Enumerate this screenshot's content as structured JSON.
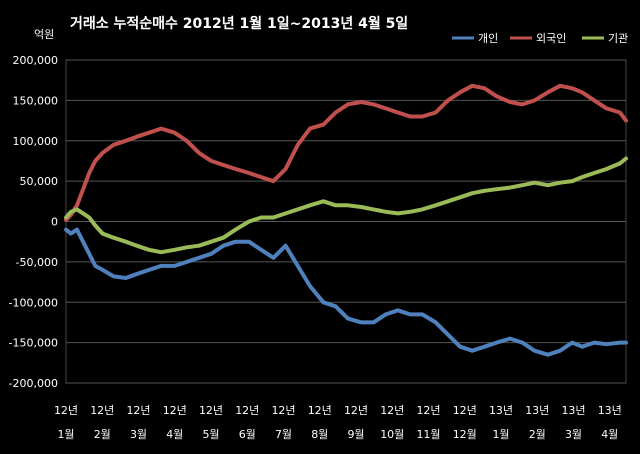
{
  "chart_data": {
    "type": "line",
    "title": "거래소  누적순매수 2012년 1월 1일~2013년 4월 5일",
    "unit_label": "억원",
    "xlabel": "",
    "ylabel": "",
    "ylim": [
      -200000,
      200000
    ],
    "yticks": [
      200000,
      150000,
      100000,
      50000,
      0,
      -50000,
      -100000,
      -150000,
      -200000
    ],
    "ytick_labels": [
      "200,000",
      "150,000",
      "100,000",
      "50,000",
      "0",
      "-50,000",
      "-100,000",
      "-150,000",
      "-200,000"
    ],
    "grid": true,
    "legend_position": "top-right",
    "x_dates": [
      "2012-01-02",
      "2012-01-06",
      "2012-01-11",
      "2012-01-16",
      "2012-01-21",
      "2012-01-26",
      "2012-02-01",
      "2012-02-10",
      "2012-02-20",
      "2012-02-29",
      "2012-03-10",
      "2012-03-20",
      "2012-03-31",
      "2012-04-10",
      "2012-04-20",
      "2012-04-30",
      "2012-05-10",
      "2012-05-20",
      "2012-05-31",
      "2012-06-10",
      "2012-06-20",
      "2012-06-30",
      "2012-07-10",
      "2012-07-20",
      "2012-07-31",
      "2012-08-10",
      "2012-08-20",
      "2012-08-31",
      "2012-09-10",
      "2012-09-20",
      "2012-09-30",
      "2012-10-10",
      "2012-10-20",
      "2012-10-31",
      "2012-11-10",
      "2012-11-20",
      "2012-11-30",
      "2012-12-10",
      "2012-12-20",
      "2012-12-31",
      "2013-01-10",
      "2013-01-20",
      "2013-01-31",
      "2013-02-10",
      "2013-02-20",
      "2013-02-28",
      "2013-03-10",
      "2013-03-20",
      "2013-03-31",
      "2013-04-05"
    ],
    "series": [
      {
        "name": "개인",
        "color": "#4f81bd",
        "values": [
          -10000,
          -15000,
          -10000,
          -25000,
          -40000,
          -55000,
          -60000,
          -68000,
          -70000,
          -65000,
          -60000,
          -55000,
          -55000,
          -50000,
          -45000,
          -40000,
          -30000,
          -25000,
          -25000,
          -35000,
          -45000,
          -30000,
          -55000,
          -80000,
          -100000,
          -105000,
          -120000,
          -125000,
          -125000,
          -115000,
          -110000,
          -115000,
          -115000,
          -125000,
          -140000,
          -155000,
          -160000,
          -155000,
          -150000,
          -145000,
          -150000,
          -160000,
          -165000,
          -160000,
          -150000,
          -155000,
          -150000,
          -152000,
          -150000,
          -150000
        ]
      },
      {
        "name": "외국인",
        "color": "#c0504d",
        "values": [
          2000,
          8000,
          20000,
          40000,
          60000,
          75000,
          85000,
          95000,
          100000,
          105000,
          110000,
          115000,
          110000,
          100000,
          85000,
          75000,
          70000,
          65000,
          60000,
          55000,
          50000,
          65000,
          95000,
          115000,
          120000,
          135000,
          145000,
          148000,
          145000,
          140000,
          135000,
          130000,
          130000,
          135000,
          150000,
          160000,
          168000,
          165000,
          155000,
          148000,
          145000,
          150000,
          160000,
          168000,
          165000,
          160000,
          150000,
          140000,
          135000,
          125000
        ]
      },
      {
        "name": "기관",
        "color": "#9bbb59",
        "values": [
          5000,
          12000,
          15000,
          10000,
          5000,
          -5000,
          -15000,
          -20000,
          -25000,
          -30000,
          -35000,
          -38000,
          -35000,
          -32000,
          -30000,
          -25000,
          -20000,
          -10000,
          0,
          5000,
          5000,
          10000,
          15000,
          20000,
          25000,
          20000,
          20000,
          18000,
          15000,
          12000,
          10000,
          12000,
          15000,
          20000,
          25000,
          30000,
          35000,
          38000,
          40000,
          42000,
          45000,
          48000,
          45000,
          48000,
          50000,
          55000,
          60000,
          65000,
          72000,
          78000
        ]
      }
    ],
    "x_tick_labels": [
      {
        "year": "12년",
        "month": "1월"
      },
      {
        "year": "12년",
        "month": "2월"
      },
      {
        "year": "12년",
        "month": "3월"
      },
      {
        "year": "12년",
        "month": "4월"
      },
      {
        "year": "12년",
        "month": "5월"
      },
      {
        "year": "12년",
        "month": "6월"
      },
      {
        "year": "12년",
        "month": "7월"
      },
      {
        "year": "12년",
        "month": "8월"
      },
      {
        "year": "12년",
        "month": "9월"
      },
      {
        "year": "12년",
        "month": "10월"
      },
      {
        "year": "12년",
        "month": "11월"
      },
      {
        "year": "12년",
        "month": "12월"
      },
      {
        "year": "13년",
        "month": "1월"
      },
      {
        "year": "13년",
        "month": "2월"
      },
      {
        "year": "13년",
        "month": "3월"
      },
      {
        "year": "13년",
        "month": "4월"
      }
    ]
  }
}
